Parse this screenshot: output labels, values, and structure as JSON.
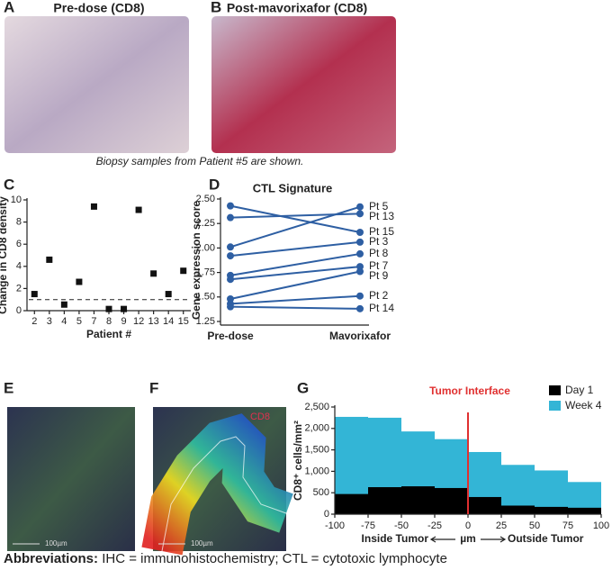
{
  "panels": [
    {
      "letter": "A",
      "title": "Pre-dose (CD8)"
    },
    {
      "letter": "B",
      "title": "Post-mavorixafor (CD8)"
    },
    {
      "letter": "C"
    },
    {
      "letter": "D"
    },
    {
      "letter": "E"
    },
    {
      "letter": "F"
    },
    {
      "letter": "G"
    }
  ],
  "caption": "Biopsy samples from Patient #5 are shown.",
  "scale_bars": [
    "100µm",
    "100µm"
  ],
  "stain_label": "CD8",
  "footer": {
    "bold": "Abbreviations:",
    "text": "IHC = immunohistochemistry; CTL = cytotoxic lymphocyte"
  },
  "chart_data": [
    {
      "type": "scatter",
      "xlabel": "Patient #",
      "ylabel": "Change in CD8 density",
      "categories": [
        "2",
        "3",
        "4",
        "5",
        "7",
        "8",
        "9",
        "12",
        "13",
        "14",
        "15"
      ],
      "values": [
        1.5,
        4.6,
        0.55,
        2.6,
        9.4,
        0.15,
        0.15,
        9.1,
        3.35,
        1.5,
        3.6
      ],
      "color": "#111111",
      "reference_line": 1,
      "ylim": [
        0,
        10
      ],
      "yticks": [
        0,
        2,
        4,
        6,
        8,
        10
      ]
    },
    {
      "type": "slope",
      "title": "CTL Signature",
      "ylabel": "Gene expression score",
      "categories": [
        "Pre-dose",
        "Mavorixafor"
      ],
      "color": "#2e5fa3",
      "series": [
        {
          "name": "Pt 5",
          "values": [
            2.01,
            2.42
          ]
        },
        {
          "name": "Pt 13",
          "values": [
            2.31,
            2.35
          ]
        },
        {
          "name": "Pt 15",
          "values": [
            2.43,
            2.16
          ]
        },
        {
          "name": "Pt 3",
          "values": [
            1.92,
            2.06
          ]
        },
        {
          "name": "Pt 8",
          "values": [
            1.72,
            1.94
          ]
        },
        {
          "name": "Pt 7",
          "values": [
            1.68,
            1.81
          ]
        },
        {
          "name": "Pt 9",
          "values": [
            1.48,
            1.76
          ]
        },
        {
          "name": "Pt 2",
          "values": [
            1.43,
            1.51
          ]
        },
        {
          "name": "Pt 14",
          "values": [
            1.4,
            1.38
          ]
        }
      ],
      "ylim": [
        1.25,
        2.5
      ],
      "yticks": [
        1.25,
        {
          "value": 1.5,
          "label": "1.50"
        },
        1.75,
        {
          "value": 2,
          "label": "2.00"
        },
        2.25,
        {
          "value": 2.5,
          "label": "2.50"
        }
      ]
    },
    {
      "type": "histogram",
      "ylabel": "CD8⁺ cells/mm²",
      "xlabel_left": "Inside Tumor",
      "xlabel": "µm",
      "xlabel_right": "Outside Tumor",
      "bins": [
        -100,
        -75,
        -50,
        -25,
        0,
        25,
        50,
        75,
        100
      ],
      "series": [
        {
          "name": "Day 1",
          "color": "#000000",
          "values": [
            470,
            630,
            650,
            610,
            400,
            200,
            170,
            150
          ]
        },
        {
          "name": "Week 4",
          "color": "#33b5d6",
          "values": [
            2270,
            2250,
            1930,
            1750,
            1450,
            1150,
            1020,
            750
          ]
        }
      ],
      "annotation": {
        "text": "Tumor Interface",
        "x": 0,
        "color": "#e03030"
      },
      "legend": "top-right",
      "xlim": [
        -100,
        100
      ],
      "xticks": [
        -100,
        -75,
        -50,
        -25,
        0,
        25,
        50,
        75,
        100
      ],
      "ylim": [
        0,
        2500
      ],
      "yticks": [
        0,
        500,
        {
          "value": 1000,
          "label": "1,000"
        },
        {
          "value": 1500,
          "label": "1,500"
        },
        {
          "value": 2000,
          "label": "2,000"
        },
        {
          "value": 2500,
          "label": "2,500"
        }
      ]
    }
  ]
}
